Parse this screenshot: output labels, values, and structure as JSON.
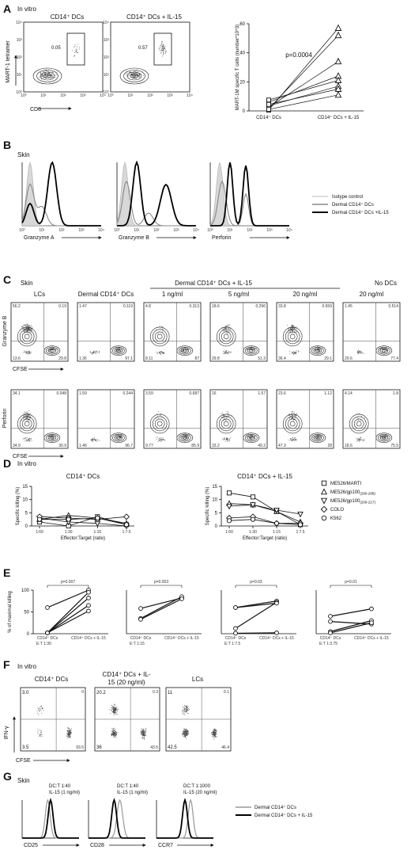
{
  "panels": {
    "A": {
      "letter": "A",
      "subtitle": "In vitro",
      "flow": [
        {
          "title": "CD14⁺ DCs",
          "gate_pct": "0.05",
          "gate_level": 0.35
        },
        {
          "title": "CD14⁺ DCs + IL-15",
          "gate_pct": "0.57",
          "gate_level": 1.0
        }
      ],
      "flow_xlabel": "CD8",
      "flow_ylabel": "MART-1 tetramer",
      "flow_ticks": [
        "10⁰",
        "10¹",
        "10²",
        "10³",
        "10⁴"
      ]
    },
    "B": {
      "letter": "B",
      "subtitle": "Skin",
      "xlabels": [
        "Granzyme  A",
        "Granzyme B",
        "Perforin"
      ],
      "ticks": [
        "10⁰",
        "10¹",
        "10²",
        "10³",
        "10⁴"
      ],
      "legend": [
        "Isotype control",
        "Dermal CD14⁺ DCs",
        "Dermal CD14⁺ DCs +IL-15"
      ]
    },
    "C": {
      "letter": "C",
      "subtitle": "Skin",
      "bracket_label": "Dermal CD14⁺ DCs + IL-15",
      "columns": [
        "LCs",
        "Dermal CD14⁺ DCs",
        "1 ng/ml",
        "5 ng/ml",
        "20 ng/ml",
        "20 ng/ml"
      ],
      "no_dcs_label": "No DCs",
      "rows": [
        {
          "ylabel": "Granzyme B",
          "xlabel": "CFSE",
          "quads": [
            [
              "56.2",
              "0.19",
              "13.6",
              "29.8"
            ],
            [
              "1.47",
              "0.119",
              "1.36",
              "97.1"
            ],
            [
              "4.8",
              "0.313",
              "8.11",
              "87"
            ],
            [
              "18.6",
              "0.296",
              "29.8",
              "51.3"
            ],
            [
              "33.8",
              "0.659",
              "36.4",
              "29.1"
            ],
            [
              "1.45",
              "0.514",
              "20.6",
              "77.4"
            ]
          ]
        },
        {
          "ylabel": "Perforin",
          "xlabel": "CFSE",
          "quads": [
            [
              "34.1",
              "0.048",
              "34.9",
              "30.9"
            ],
            [
              "1.59",
              "0.244",
              "1.46",
              "96.7"
            ],
            [
              "3.59",
              "0.687",
              "9.77",
              "85.9"
            ],
            [
              "16",
              "1.57",
              "33.2",
              "49.2"
            ],
            [
              "23.6",
              "1.12",
              "47.3",
              "28"
            ],
            [
              "4.14",
              "1.8",
              "18.6",
              "75.5"
            ]
          ]
        }
      ]
    },
    "D": {
      "letter": "D",
      "subtitle": "In vitro"
    },
    "E": {
      "letter": "E"
    },
    "F": {
      "letter": "F",
      "subtitle": "In vitro",
      "titles": [
        "CD14⁺ DCs",
        "CD14⁺ DCs + IL-",
        "15 (20 ng/ml)",
        "LCs"
      ],
      "plots": [
        {
          "ul": "3.0",
          "ur": "0",
          "ll": "3.5",
          "lr": "93.5"
        },
        {
          "ul": "20.2",
          "ur": "0.3",
          "ll": "36",
          "lr": "43.5"
        },
        {
          "ul": "11",
          "ur": "0.1",
          "ll": "42.5",
          "lr": "46.4"
        }
      ],
      "ylabel": "IFN-γ",
      "xlabel": "CFSE"
    },
    "G": {
      "letter": "G",
      "subtitle": "Skin",
      "titles": [
        [
          "DC:T 1:40",
          "IL-15 (1 ng/ml)"
        ],
        [
          "DC:T 1:40",
          "IL-15 (1 ng/ml)"
        ],
        [
          "DC:T 1:1000",
          "IL-15 (20 ng/ml)"
        ]
      ],
      "xlabels": [
        "CD25",
        "CD28",
        "CCR7"
      ],
      "legend": [
        "Dermal CD14⁺ DCs",
        "Dermal CD14⁺ DCs + IL-15"
      ]
    }
  },
  "chart_data": [
    {
      "id": "A-right",
      "type": "scatter",
      "ylabel": "MART-1M specific T cells (number*10^3)",
      "categories": [
        "CD14⁺ DCs",
        "CD14⁺ DCs + IL-15"
      ],
      "ylim": [
        0,
        60
      ],
      "yticks": [
        0,
        20,
        40,
        60
      ],
      "annotation": "p=0.0004",
      "series": [
        {
          "values": [
            0.5,
            57
          ]
        },
        {
          "values": [
            1.5,
            52
          ]
        },
        {
          "values": [
            2.5,
            34
          ]
        },
        {
          "values": [
            6,
            24
          ]
        },
        {
          "values": [
            7.5,
            21
          ]
        },
        {
          "values": [
            3.5,
            17
          ]
        },
        {
          "values": [
            4.5,
            15
          ]
        },
        {
          "values": [
            1,
            11
          ]
        }
      ]
    },
    {
      "id": "D-left",
      "type": "line",
      "title": "CD14⁺ DCs",
      "xlabel": "Effector:Target (ratio)",
      "ylabel": "Specific killing (%)",
      "categories": [
        "1:60",
        "1:30",
        "1:15",
        "1:7.5"
      ],
      "ylim": [
        0,
        15
      ],
      "yticks": [
        0,
        5,
        10,
        15
      ],
      "series": [
        {
          "marker": "square",
          "values": [
            1.5,
            0,
            3.5,
            0.5
          ]
        },
        {
          "marker": "triangle-up",
          "values": [
            2.5,
            4,
            3,
            1
          ]
        },
        {
          "marker": "triangle-down",
          "values": [
            3,
            1.5,
            1,
            0
          ]
        },
        {
          "marker": "diamond",
          "values": [
            3.5,
            3,
            2.5,
            3.5
          ]
        },
        {
          "marker": "circle",
          "values": [
            2.5,
            2.5,
            3,
            0.5
          ]
        }
      ]
    },
    {
      "id": "D-right",
      "type": "line",
      "title": "CD14⁺ DCs + IL-15",
      "xlabel": "Effector:Target (ratio)",
      "ylabel": "Specific killing (%)",
      "categories": [
        "1:60",
        "1:30",
        "1:15",
        "1:7.5"
      ],
      "ylim": [
        0,
        15
      ],
      "yticks": [
        0,
        5,
        10,
        15
      ],
      "legend_position": "right",
      "series": [
        {
          "name": "ME526/MARTI",
          "marker": "square",
          "values": [
            12.5,
            11,
            5.5,
            0.5
          ]
        },
        {
          "name": "ME526/gp100",
          "name_sub": "(280-288)",
          "marker": "triangle-up",
          "values": [
            8.5,
            8,
            5.5,
            1.5
          ]
        },
        {
          "name": "ME526/gp100",
          "name_sub": "(209-217)",
          "marker": "triangle-down",
          "values": [
            7.5,
            8,
            6,
            4.5
          ]
        },
        {
          "name": "COLO",
          "marker": "diamond",
          "values": [
            3,
            3.5,
            1,
            1
          ]
        },
        {
          "name": "K562",
          "marker": "circle",
          "values": [
            2,
            2.5,
            1,
            0.5
          ]
        }
      ]
    },
    {
      "id": "E",
      "type": "scatter",
      "ylabel": "% of maximal killing",
      "categories": [
        "CD14⁺ DCs",
        "CD14⁺ DCs + IL-15"
      ],
      "ylim": [
        0,
        100
      ],
      "yticks": [
        0,
        50,
        100
      ],
      "subplots": [
        {
          "xlabel": "E:T 1:30",
          "annotation": "p=0.007",
          "pairs": [
            [
              60,
              100
            ],
            [
              2,
              95
            ],
            [
              2,
              82
            ],
            [
              2,
              65
            ],
            [
              2,
              52
            ]
          ]
        },
        {
          "xlabel": "E:T 1:15",
          "annotation": "p=0.003",
          "pairs": [
            [
              58,
              82
            ],
            [
              35,
              85
            ],
            [
              33,
              80
            ]
          ]
        },
        {
          "xlabel": "E:T 1:7.5",
          "annotation": "p=0.03",
          "pairs": [
            [
              60,
              75
            ],
            [
              12,
              72
            ],
            [
              60,
              70
            ],
            [
              1,
              2
            ]
          ]
        },
        {
          "xlabel": "E:T 1:3.75",
          "annotation": "p=0.01",
          "pairs": [
            [
              28,
              22
            ],
            [
              40,
              57
            ],
            [
              5,
              30
            ],
            [
              2,
              25
            ]
          ]
        }
      ]
    }
  ]
}
